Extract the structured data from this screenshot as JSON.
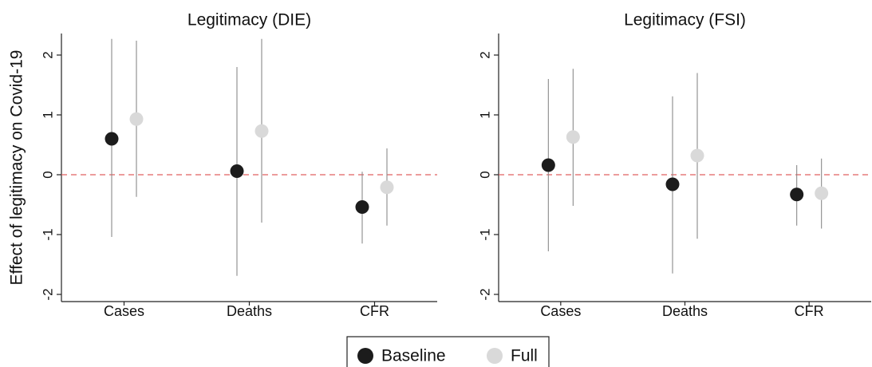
{
  "chart_data": [
    {
      "type": "dot-interval",
      "title": "Legitimacy (DIE)",
      "y_label": "Effect of legitimacy on Covid-19",
      "categories": [
        "Cases",
        "Deaths",
        "CFR"
      ],
      "ylim": [
        -2.12,
        2.36
      ],
      "yticks": [
        -2,
        -1,
        0,
        1,
        2
      ],
      "reference_line": {
        "value": 0,
        "color": "#e06060"
      },
      "series": [
        {
          "name": "Baseline",
          "color": "#1c1c1c",
          "values": [
            0.6,
            0.06,
            -0.54
          ],
          "lower": [
            -1.04,
            -1.69,
            -1.15
          ],
          "upper": [
            2.27,
            1.8,
            0.05
          ]
        },
        {
          "name": "Full",
          "color": "#d9d9d9",
          "values": [
            0.93,
            0.73,
            -0.21
          ],
          "lower": [
            -0.37,
            -0.8,
            -0.85
          ],
          "upper": [
            2.24,
            2.27,
            0.44
          ]
        }
      ]
    },
    {
      "type": "dot-interval",
      "title": "Legitimacy (FSI)",
      "categories": [
        "Cases",
        "Deaths",
        "CFR"
      ],
      "ylim": [
        -2.12,
        2.36
      ],
      "yticks": [
        -2,
        -1,
        0,
        1,
        2
      ],
      "reference_line": {
        "value": 0,
        "color": "#e06060"
      },
      "series": [
        {
          "name": "Baseline",
          "color": "#1c1c1c",
          "values": [
            0.16,
            -0.16,
            -0.33
          ],
          "lower": [
            -1.28,
            -1.65,
            -0.85
          ],
          "upper": [
            1.6,
            1.31,
            0.16
          ]
        },
        {
          "name": "Full",
          "color": "#d9d9d9",
          "values": [
            0.63,
            0.32,
            -0.31
          ],
          "lower": [
            -0.52,
            -1.07,
            -0.9
          ],
          "upper": [
            1.77,
            1.7,
            0.27
          ]
        }
      ]
    }
  ]
}
